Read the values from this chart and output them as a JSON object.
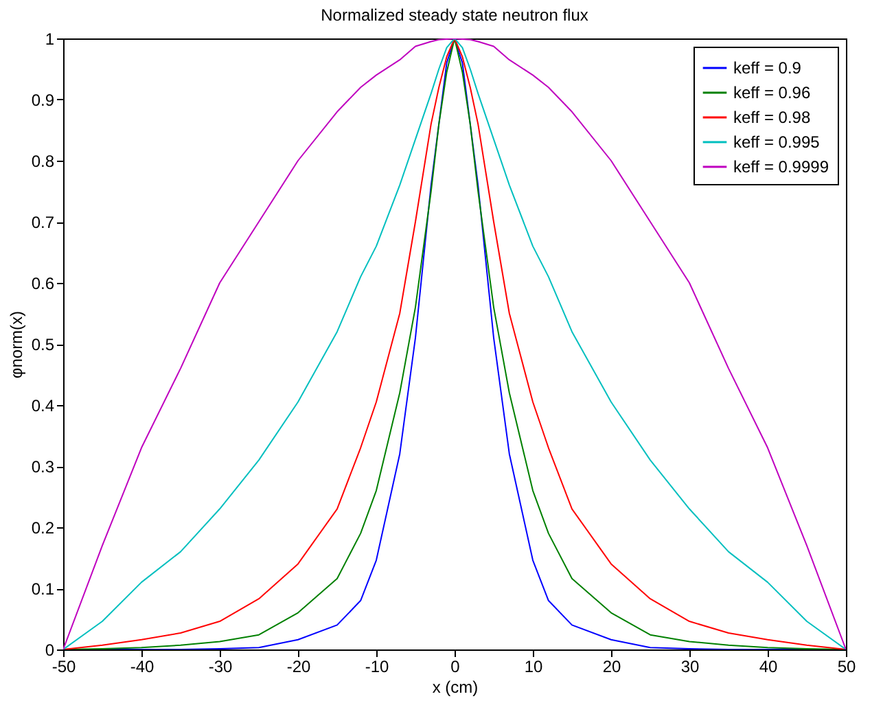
{
  "chart_data": {
    "type": "line",
    "title": "Normalized steady state neutron flux",
    "xlabel": "x (cm)",
    "ylabel": "φnorm(x)",
    "x": [
      -50,
      -45,
      -40,
      -35,
      -30,
      -25,
      -20,
      -15,
      -12,
      -10,
      -7,
      -5,
      -3,
      -2,
      -1,
      0,
      1,
      2,
      3,
      5,
      7,
      10,
      12,
      15,
      20,
      25,
      30,
      35,
      40,
      45,
      50
    ],
    "series": [
      {
        "name": "keff = 0.9",
        "color": "#0000ff",
        "values": [
          0,
          0,
          0,
          0,
          0.001,
          0.003,
          0.016,
          0.04,
          0.08,
          0.146,
          0.32,
          0.51,
          0.76,
          0.86,
          0.96,
          1,
          0.96,
          0.86,
          0.76,
          0.51,
          0.32,
          0.146,
          0.08,
          0.04,
          0.016,
          0.003,
          0.001,
          0,
          0,
          0,
          0
        ]
      },
      {
        "name": "keff = 0.96",
        "color": "#008000",
        "values": [
          0,
          0.001,
          0.003,
          0.007,
          0.013,
          0.024,
          0.06,
          0.116,
          0.19,
          0.26,
          0.42,
          0.56,
          0.75,
          0.86,
          0.945,
          1,
          0.945,
          0.86,
          0.75,
          0.56,
          0.42,
          0.26,
          0.19,
          0.116,
          0.06,
          0.024,
          0.013,
          0.007,
          0.003,
          0.001,
          0
        ]
      },
      {
        "name": "keff = 0.98",
        "color": "#ff0000",
        "values": [
          0,
          0.007,
          0.016,
          0.027,
          0.046,
          0.083,
          0.14,
          0.23,
          0.33,
          0.405,
          0.55,
          0.7,
          0.86,
          0.92,
          0.97,
          1,
          0.97,
          0.92,
          0.86,
          0.7,
          0.55,
          0.405,
          0.33,
          0.23,
          0.14,
          0.083,
          0.046,
          0.027,
          0.016,
          0.007,
          0
        ]
      },
      {
        "name": "keff = 0.995",
        "color": "#00bfbf",
        "values": [
          0,
          0.046,
          0.11,
          0.16,
          0.23,
          0.31,
          0.405,
          0.52,
          0.61,
          0.66,
          0.76,
          0.835,
          0.91,
          0.95,
          0.985,
          1,
          0.985,
          0.95,
          0.91,
          0.835,
          0.76,
          0.66,
          0.61,
          0.52,
          0.405,
          0.31,
          0.23,
          0.16,
          0.11,
          0.046,
          0
        ]
      },
      {
        "name": "keff = 0.9999",
        "color": "#bf00bf",
        "values": [
          0,
          0.17,
          0.33,
          0.46,
          0.6,
          0.7,
          0.8,
          0.88,
          0.92,
          0.94,
          0.965,
          0.987,
          0.995,
          0.998,
          0.999,
          1,
          0.999,
          0.998,
          0.995,
          0.987,
          0.965,
          0.94,
          0.92,
          0.88,
          0.8,
          0.7,
          0.6,
          0.46,
          0.33,
          0.17,
          0
        ]
      }
    ],
    "xlim": [
      -50,
      50
    ],
    "xticks": [
      -50,
      -40,
      -30,
      -20,
      -10,
      0,
      10,
      20,
      30,
      40,
      50
    ],
    "ylim": [
      0,
      1
    ],
    "yticks": [
      0,
      0.1,
      0.2,
      0.3,
      0.4,
      0.5,
      0.6,
      0.7,
      0.8,
      0.9,
      1
    ],
    "grid": false,
    "legend": "top right",
    "marker": "none",
    "line_style": "solid"
  }
}
